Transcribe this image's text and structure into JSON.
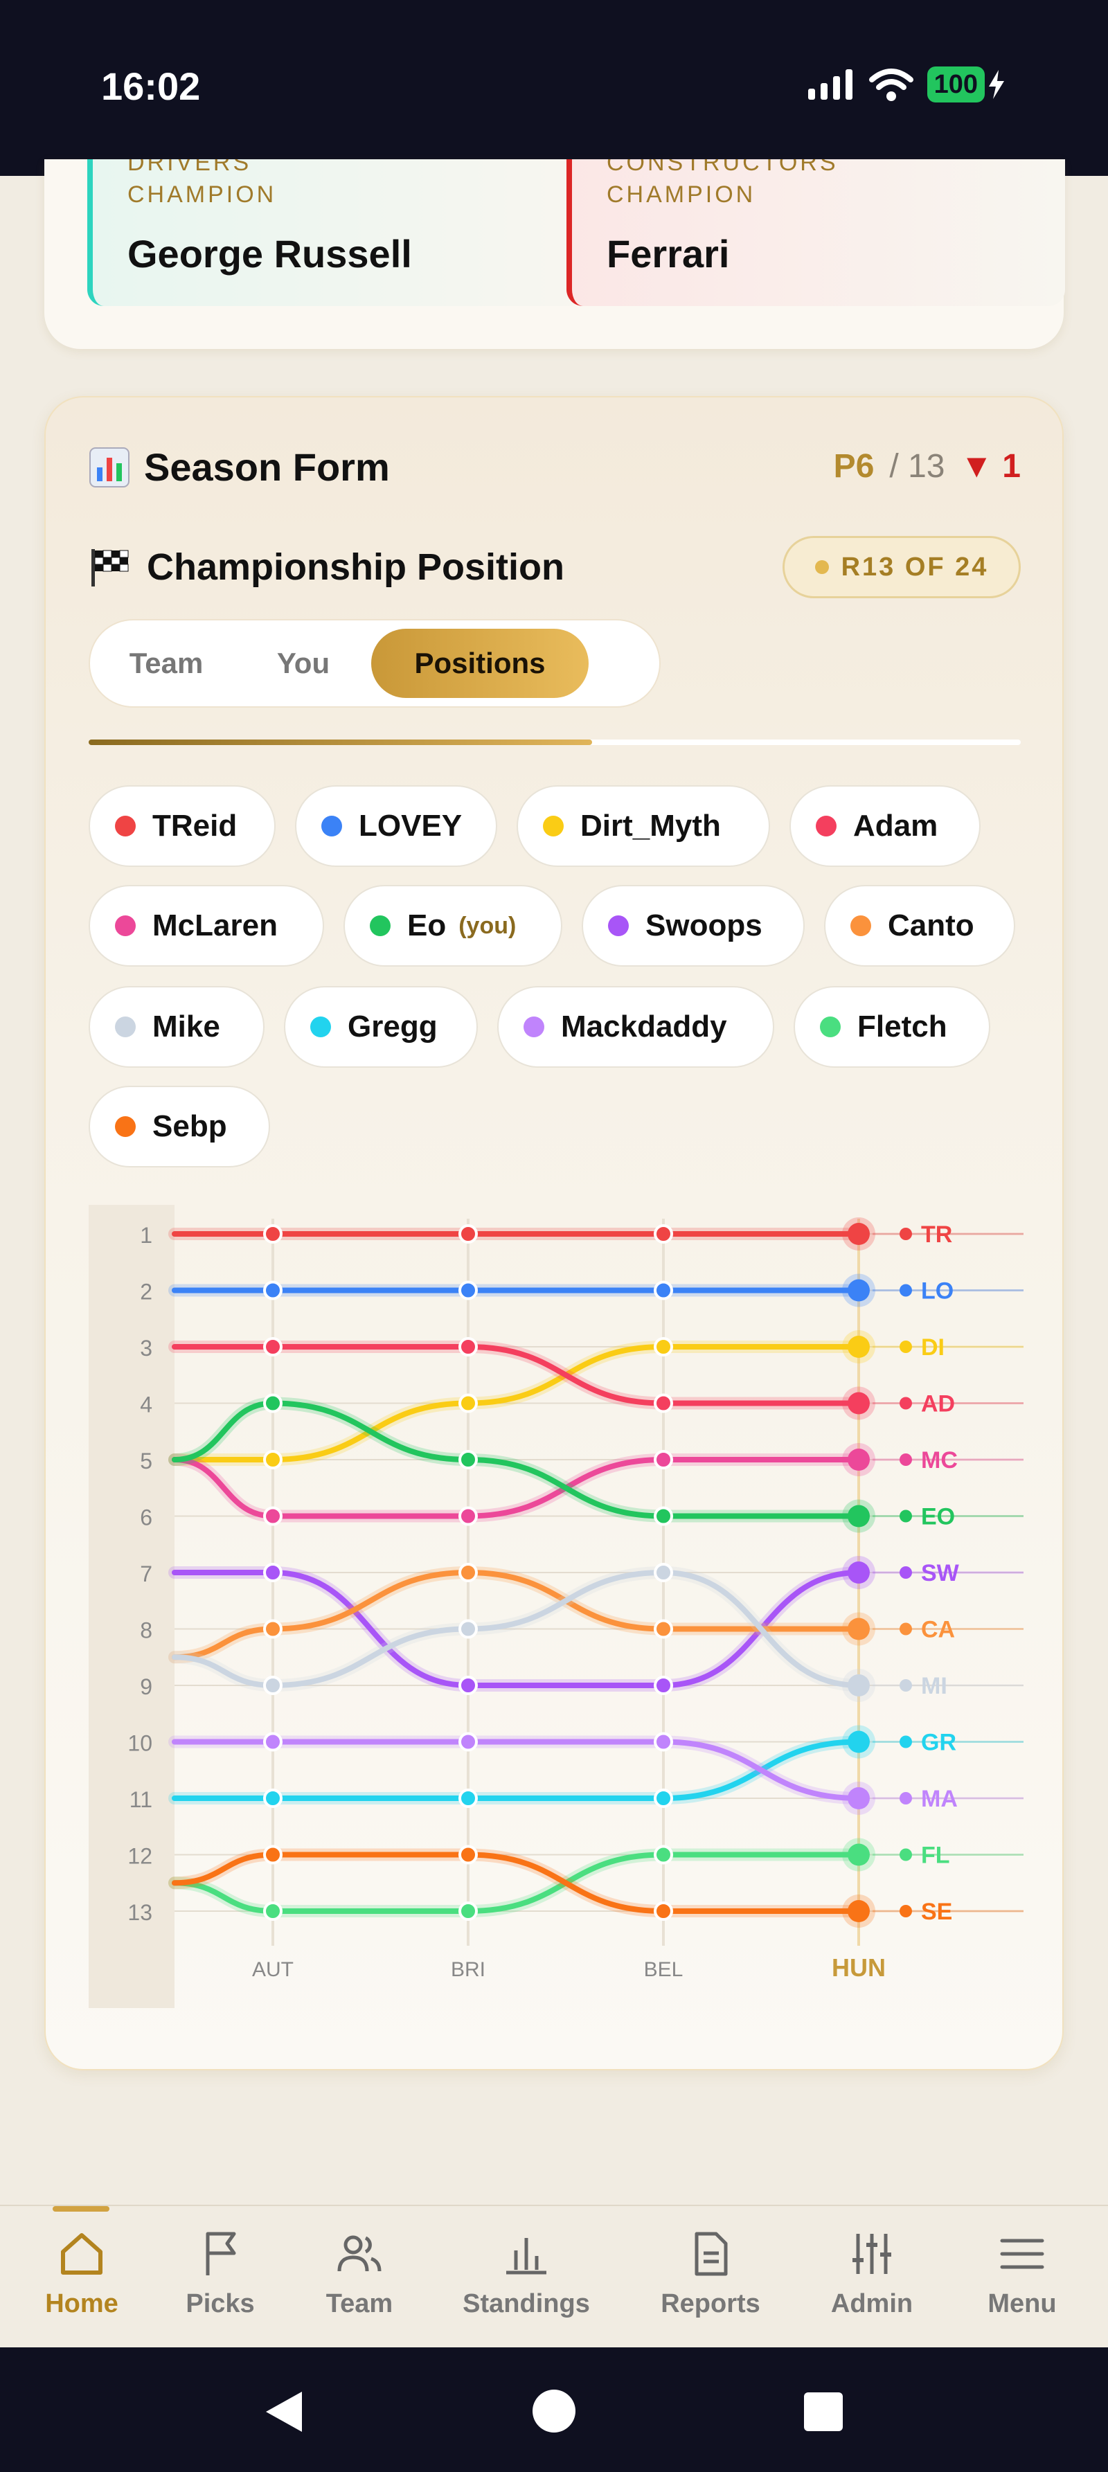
{
  "status_bar": {
    "time": "16:02",
    "battery": "100"
  },
  "champions": {
    "drivers_label": "DRIVERS CHAMPION",
    "drivers_name": "George Russell",
    "constructors_label": "CONSTRUCTORS CHAMPION",
    "constructors_name": "Ferrari"
  },
  "season_form": {
    "title": "Season Form",
    "position": "P6",
    "of_total": "/ 13",
    "change": "▼ 1",
    "championship_title": "Championship Position",
    "round_label": "R13 OF 24",
    "tabs": [
      "Team",
      "You",
      "Positions"
    ],
    "active_tab": "Positions",
    "progress_fraction": 0.54
  },
  "legend": [
    {
      "name": "TReid",
      "color": "#ef4444"
    },
    {
      "name": "LOVEY",
      "color": "#3b82f6"
    },
    {
      "name": "Dirt_Myth",
      "color": "#facc15"
    },
    {
      "name": "Adam",
      "color": "#f43f5e"
    },
    {
      "name": "McLaren",
      "color": "#ec4899"
    },
    {
      "name": "Eo",
      "color": "#22c55e",
      "you": "(you)"
    },
    {
      "name": "Swoops",
      "color": "#a855f7"
    },
    {
      "name": "Canto",
      "color": "#fb923c"
    },
    {
      "name": "Mike",
      "color": "#cbd5e1"
    },
    {
      "name": "Gregg",
      "color": "#22d3ee"
    },
    {
      "name": "Mackdaddy",
      "color": "#c084fc"
    },
    {
      "name": "Fletch",
      "color": "#4ade80"
    },
    {
      "name": "Sebp",
      "color": "#f97316"
    }
  ],
  "chart_data": {
    "type": "line",
    "y_ticks": [
      1,
      2,
      3,
      4,
      5,
      6,
      7,
      8,
      9,
      10,
      11,
      12,
      13
    ],
    "x_labels": [
      "AUT",
      "BRI",
      "BEL",
      "HUN"
    ],
    "highlight_x": "HUN",
    "ylim": [
      1,
      13
    ],
    "series": [
      {
        "name": "TReid",
        "tag": "TR",
        "color": "#ef4444",
        "values": [
          1,
          1,
          1,
          1,
          1
        ]
      },
      {
        "name": "LOVEY",
        "tag": "LO",
        "color": "#3b82f6",
        "values": [
          2,
          2,
          2,
          2,
          2
        ]
      },
      {
        "name": "Dirt_Myth",
        "tag": "DI",
        "color": "#facc15",
        "values": [
          5,
          5,
          4,
          3,
          3
        ]
      },
      {
        "name": "Adam",
        "tag": "AD",
        "color": "#f43f5e",
        "values": [
          3,
          3,
          3,
          4,
          4
        ]
      },
      {
        "name": "McLaren",
        "tag": "MC",
        "color": "#ec4899",
        "values": [
          5,
          6,
          6,
          5,
          5
        ]
      },
      {
        "name": "Eo",
        "tag": "EO",
        "color": "#22c55e",
        "values": [
          5,
          4,
          5,
          6,
          6
        ]
      },
      {
        "name": "Swoops",
        "tag": "SW",
        "color": "#a855f7",
        "values": [
          7,
          7,
          9,
          9,
          7
        ]
      },
      {
        "name": "Canto",
        "tag": "CA",
        "color": "#fb923c",
        "values": [
          8.5,
          8,
          7,
          8,
          8
        ]
      },
      {
        "name": "Mike",
        "tag": "MI",
        "color": "#cbd5e1",
        "values": [
          8.5,
          9,
          8,
          7,
          9
        ]
      },
      {
        "name": "Gregg",
        "tag": "GR",
        "color": "#22d3ee",
        "values": [
          11,
          11,
          11,
          11,
          10
        ]
      },
      {
        "name": "Mackdaddy",
        "tag": "MA",
        "color": "#c084fc",
        "values": [
          10,
          10,
          10,
          10,
          11
        ]
      },
      {
        "name": "Fletch",
        "tag": "FL",
        "color": "#4ade80",
        "values": [
          12.5,
          13,
          13,
          12,
          12
        ]
      },
      {
        "name": "Sebp",
        "tag": "SE",
        "color": "#f97316",
        "values": [
          12.5,
          12,
          12,
          13,
          13
        ]
      }
    ]
  },
  "nav": [
    {
      "label": "Home",
      "icon": "home-icon",
      "active": true
    },
    {
      "label": "Picks",
      "icon": "flag-icon"
    },
    {
      "label": "Team",
      "icon": "users-icon"
    },
    {
      "label": "Standings",
      "icon": "bar-chart-icon"
    },
    {
      "label": "Reports",
      "icon": "document-icon"
    },
    {
      "label": "Admin",
      "icon": "sliders-icon"
    },
    {
      "label": "Menu",
      "icon": "menu-icon"
    }
  ],
  "colors": {
    "accent_gold": "#c99838",
    "status_bar_bg": "#0f1020",
    "page_bg": "#f1ece2"
  }
}
